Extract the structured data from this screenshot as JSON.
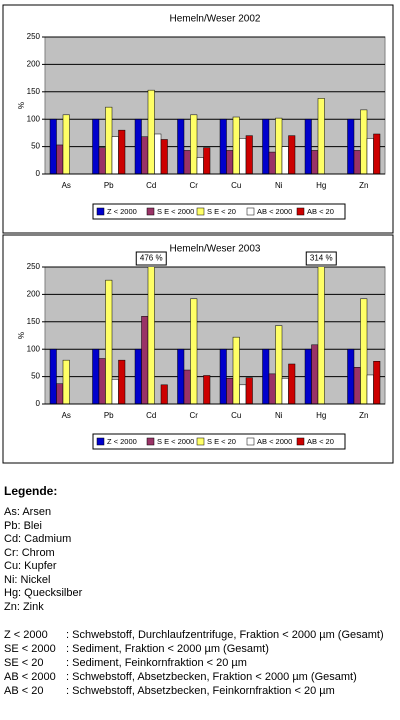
{
  "chart_data": [
    {
      "type": "bar",
      "title": "Hemeln/Weser 2002",
      "y_label": "%",
      "categories": [
        "As",
        "Pb",
        "Cd",
        "Cr",
        "Cu",
        "Ni",
        "Hg",
        "Zn"
      ],
      "series": [
        {
          "name": "Z < 2000",
          "color": "#0000cc",
          "values": [
            100,
            100,
            100,
            100,
            100,
            100,
            100,
            100
          ]
        },
        {
          "name": "S E < 2000",
          "color": "#993366",
          "values": [
            53,
            48,
            68,
            43,
            43,
            40,
            43,
            43
          ]
        },
        {
          "name": "S E < 20",
          "color": "#ffff66",
          "values": [
            108,
            122,
            153,
            108,
            104,
            102,
            138,
            117
          ]
        },
        {
          "name": "AB < 2000",
          "color": "#ffffff",
          "values": [
            null,
            68,
            73,
            30,
            65,
            50,
            null,
            65
          ]
        },
        {
          "name": "AB < 20",
          "color": "#cc0000",
          "values": [
            null,
            80,
            63,
            48,
            70,
            70,
            null,
            73
          ]
        }
      ],
      "ylim": [
        0,
        250
      ],
      "yticks": [
        0,
        50,
        100,
        150,
        200,
        250
      ],
      "grid": true
    },
    {
      "type": "bar",
      "title": "Hemeln/Weser 2003",
      "y_label": "%",
      "categories": [
        "As",
        "Pb",
        "Cd",
        "Cr",
        "Cu",
        "Ni",
        "Hg",
        "Zn"
      ],
      "series": [
        {
          "name": "Z < 2000",
          "color": "#0000cc",
          "values": [
            100,
            100,
            100,
            100,
            100,
            100,
            100,
            100
          ]
        },
        {
          "name": "S E < 2000",
          "color": "#993366",
          "values": [
            37,
            83,
            160,
            62,
            47,
            55,
            108,
            67
          ]
        },
        {
          "name": "S E < 20",
          "color": "#ffff66",
          "values": [
            80,
            226,
            476,
            192,
            122,
            143,
            314,
            192
          ],
          "value_labels": [
            null,
            null,
            "476 %",
            null,
            null,
            null,
            "314 %",
            null
          ]
        },
        {
          "name": "AB < 2000",
          "color": "#ffffff",
          "values": [
            null,
            45,
            null,
            null,
            35,
            47,
            null,
            53
          ]
        },
        {
          "name": "AB < 20",
          "color": "#cc0000",
          "values": [
            null,
            80,
            35,
            52,
            48,
            73,
            null,
            78
          ]
        }
      ],
      "ylim": [
        0,
        250
      ],
      "yticks": [
        0,
        50,
        100,
        150,
        200,
        250
      ],
      "grid": true
    }
  ],
  "legend_text": {
    "title": "Legende:",
    "elements": [
      "As: Arsen",
      "Pb: Blei",
      "Cd: Cadmium",
      "Cr: Chrom",
      "Cu: Kupfer",
      "Ni: Nickel",
      "Hg: Quecksilber",
      "Zn: Zink"
    ],
    "fractions": [
      {
        "code": "Z < 2000",
        "desc": ": Schwebstoff, Durchlaufzentrifuge, Fraktion < 2000 µm (Gesamt)"
      },
      {
        "code": "SE < 2000",
        "desc": ": Sediment, Fraktion < 2000 µm (Gesamt)"
      },
      {
        "code": "SE < 20",
        "desc": ": Sediment, Feinkornfraktion < 20 µm"
      },
      {
        "code": "AB < 2000",
        "desc": ": Schwebstoff, Absetzbecken, Fraktion < 2000 µm (Gesamt)"
      },
      {
        "code": "AB < 20",
        "desc": ": Schwebstoff, Absetzbecken, Feinkornfraktion < 20 µm"
      }
    ]
  }
}
